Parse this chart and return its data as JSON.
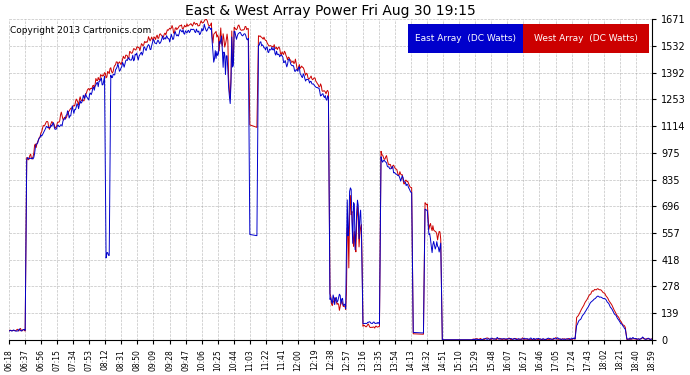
{
  "title": "East & West Array Power Fri Aug 30 19:15",
  "copyright": "Copyright 2013 Cartronics.com",
  "legend_east": "East Array  (DC Watts)",
  "legend_west": "West Array  (DC Watts)",
  "east_color": "#0000cc",
  "west_color": "#cc0000",
  "bg_color": "#ffffff",
  "plot_bg_color": "#ffffff",
  "grid_color": "#999999",
  "yticks": [
    0.0,
    139.2,
    278.4,
    417.7,
    556.9,
    696.1,
    835.3,
    974.6,
    1113.8,
    1253.0,
    1392.2,
    1531.5,
    1670.7
  ],
  "ymin": 0.0,
  "ymax": 1670.7,
  "xtick_labels": [
    "06:18",
    "06:37",
    "06:56",
    "07:15",
    "07:34",
    "07:53",
    "08:12",
    "08:31",
    "08:50",
    "09:09",
    "09:28",
    "09:47",
    "10:06",
    "10:25",
    "10:44",
    "11:03",
    "11:22",
    "11:41",
    "12:00",
    "12:19",
    "12:38",
    "12:57",
    "13:16",
    "13:35",
    "13:54",
    "14:13",
    "14:32",
    "14:51",
    "15:10",
    "15:29",
    "15:48",
    "16:07",
    "16:27",
    "16:46",
    "17:05",
    "17:24",
    "17:43",
    "18:02",
    "18:21",
    "18:40",
    "18:59"
  ]
}
